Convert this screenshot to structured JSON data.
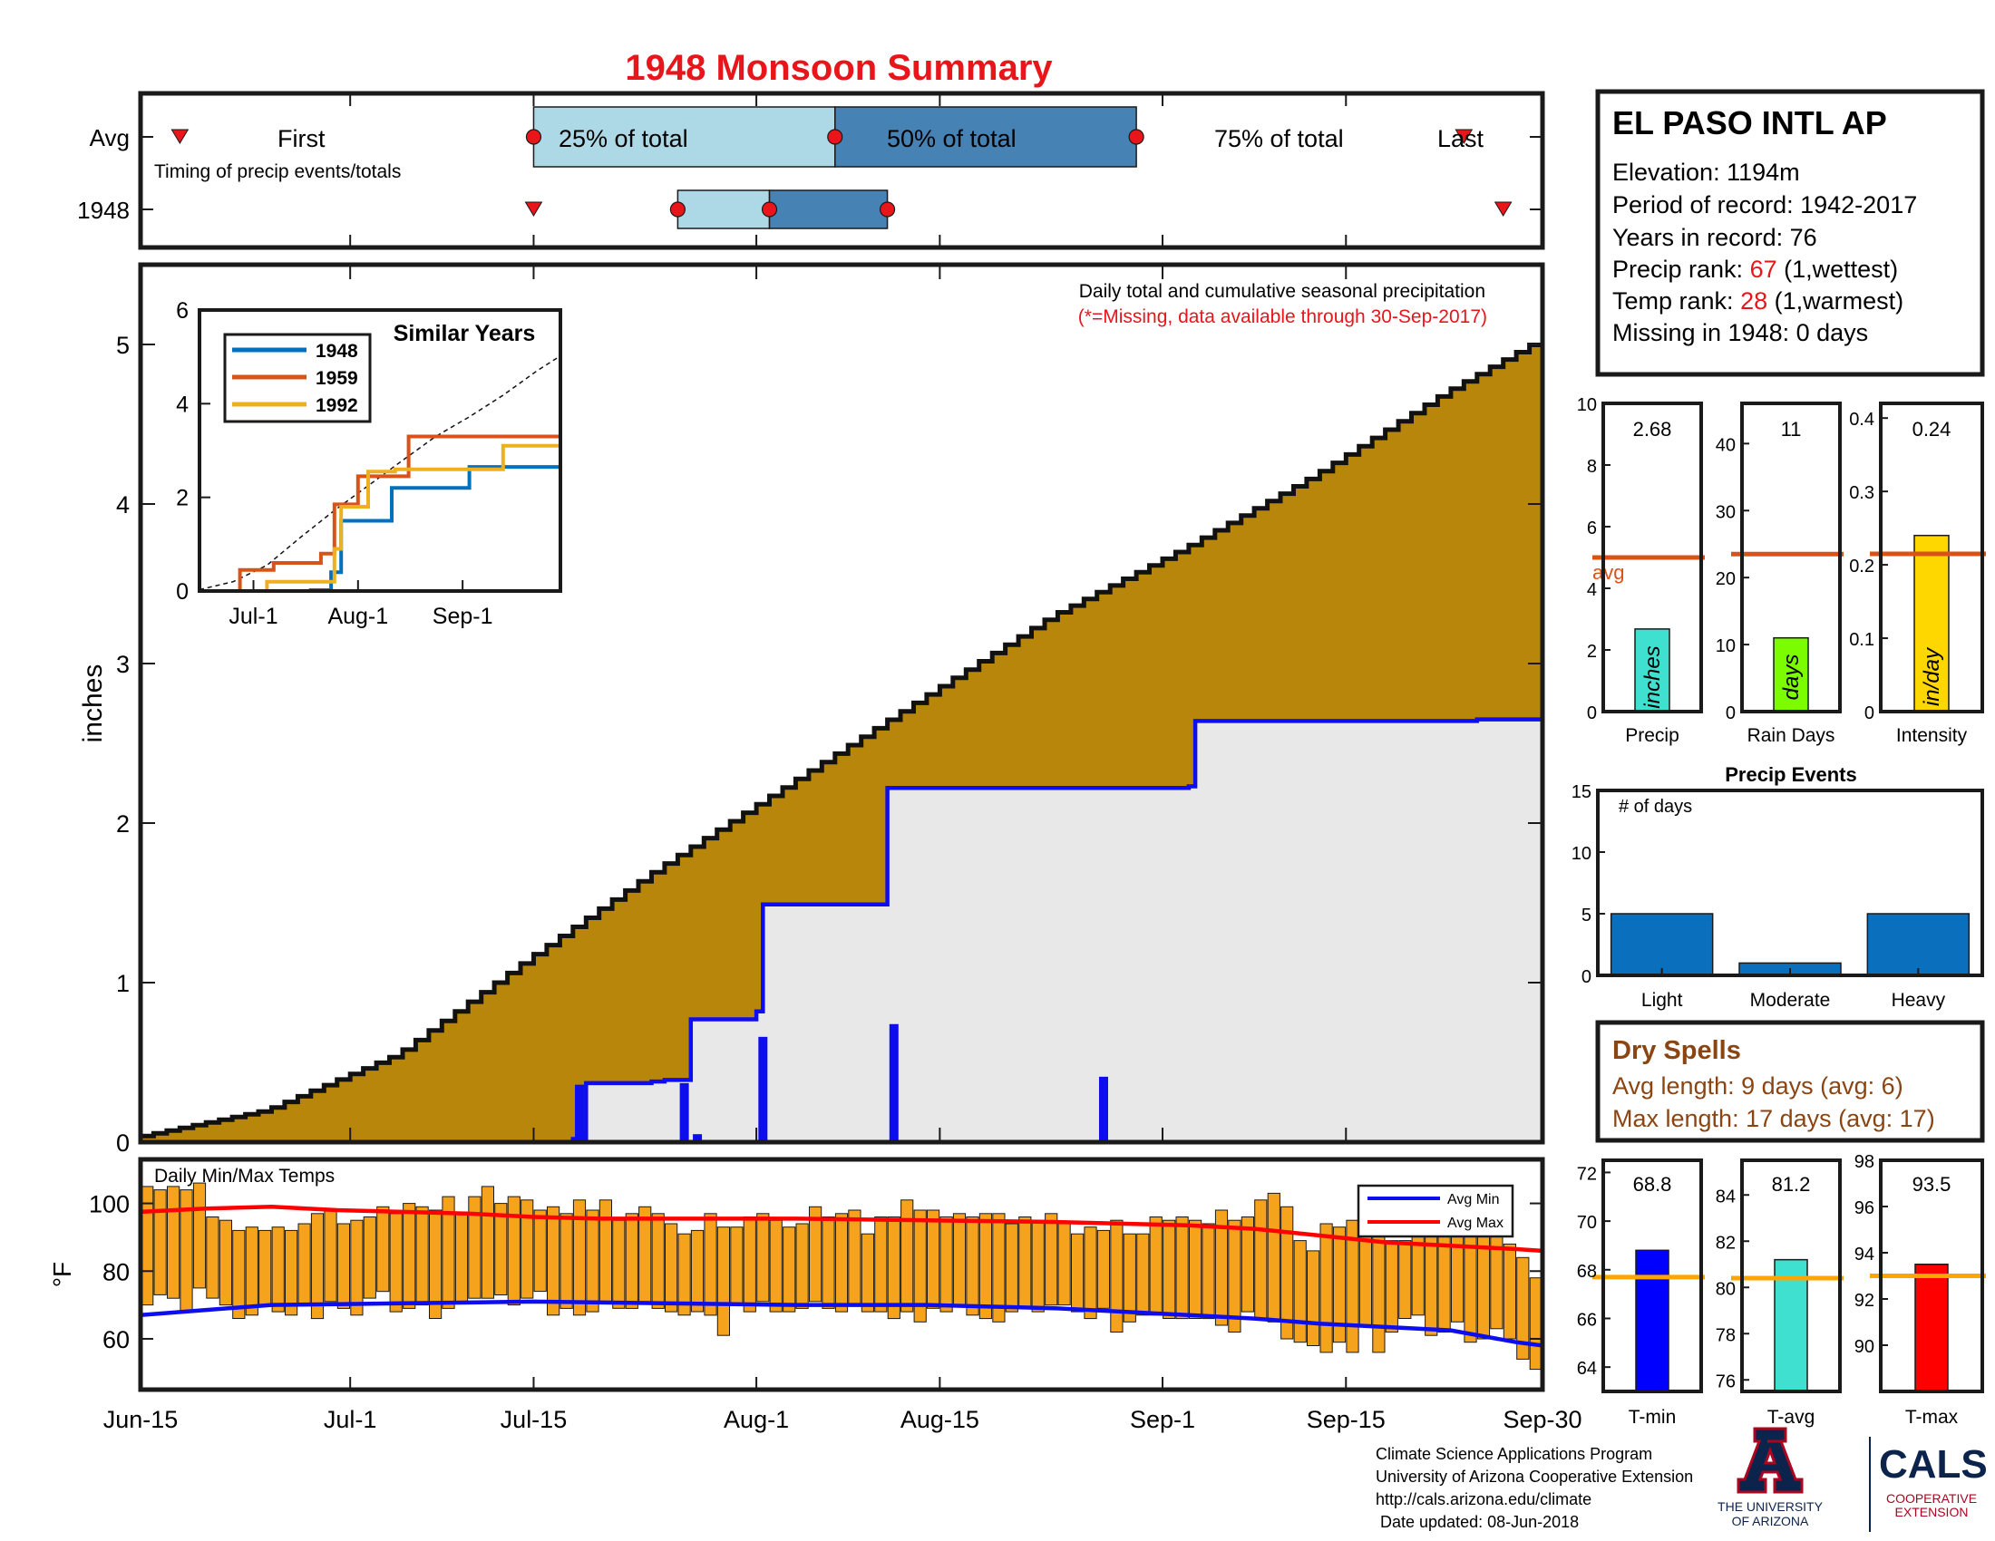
{
  "title": "1948 Monsoon Summary",
  "year": "1948",
  "timing": {
    "row_avg_label": "Avg",
    "row_year_label": "1948",
    "subtitle": "Timing of precip events/totals",
    "labels": {
      "first": "First",
      "p25": "25% of total",
      "p50": "50% of total",
      "p75": "75% of total",
      "last": "Last"
    }
  },
  "station": {
    "name": "EL PASO INTL AP",
    "elevation_text": "Elevation: 1194m",
    "period_text": "Period of record: 1942-2017",
    "years_text": "Years in record: 76",
    "precip_rank_prefix": "Precip rank: ",
    "precip_rank": "67",
    "precip_rank_suffix": " (1,wettest)",
    "temp_rank_prefix": "Temp rank: ",
    "temp_rank": "28",
    "temp_rank_suffix": " (1,warmest)",
    "missing_text": "Missing in 1948: 0 days"
  },
  "main_chart": {
    "note_line1": "Daily total and cumulative seasonal precipitation",
    "note_line2": "(*=Missing, data available through 30-Sep-2017)",
    "ylabel": "inches"
  },
  "temp_chart": {
    "title": "Daily Min/Max Temps",
    "ylabel": "°F",
    "legend_min": "Avg Min",
    "legend_max": "Avg Max"
  },
  "dry_spells": {
    "title": "Dry Spells",
    "avg_text": "Avg length: 9 days (avg: 6)",
    "max_text": "Max length: 17 days (avg: 17)"
  },
  "footer": {
    "line1": "Climate Science Applications Program",
    "line2": "University of Arizona Cooperative Extension",
    "line3": "http://cals.arizona.edu/climate",
    "line4": " Date updated: 08-Jun-2018"
  },
  "logos": {
    "ua_line1": "THE UNIVERSITY",
    "ua_line2": "OF ARIZONA",
    "cals": "CALS",
    "cals_sub1": "COOPERATIVE",
    "cals_sub2": "EXTENSION"
  },
  "colors": {
    "title_red": "#e8151b",
    "avg_fill": "#b8860b",
    "cum_fill": "#e8e8e8",
    "blue": "#0d0df0",
    "orange_line": "#d95319",
    "temp_bar": "#f5a21c",
    "box_light": "#add8e6",
    "box_dark": "#4682b4",
    "dry_brown": "#8b4513"
  },
  "chart_data": [
    {
      "type": "timing",
      "title": "Timing of precip events/totals",
      "x_range": [
        "Jun-15",
        "Sep-30"
      ],
      "avg": {
        "first": "Jun-18",
        "p25": "Jul-15",
        "p50": "Aug-7",
        "p75": "Aug-30",
        "last": "Sep-24"
      },
      "year_1948": {
        "first": "Jul-15",
        "p25": "Jul-26",
        "p50": "Aug-2",
        "p75": "Aug-11",
        "last": "Sep-27"
      }
    },
    {
      "type": "area",
      "title": "Daily total and cumulative seasonal precipitation",
      "ylabel": "inches",
      "xlim": [
        "Jun-15",
        "Sep-30"
      ],
      "ylim": [
        0,
        5.5
      ],
      "x_ticks": [
        "Jun-15",
        "Jul-1",
        "Jul-15",
        "Aug-1",
        "Aug-15",
        "Sep-1",
        "Sep-15",
        "Sep-30"
      ],
      "x_tick_days": [
        0,
        16,
        30,
        47,
        61,
        78,
        92,
        107
      ],
      "y_ticks": [
        0,
        1,
        2,
        3,
        4,
        5
      ],
      "avg_cumulative": {
        "days": [
          0,
          10,
          20,
          30,
          40,
          50,
          60,
          70,
          80,
          90,
          100,
          107
        ],
        "values": [
          0.03,
          0.2,
          0.55,
          1.15,
          1.72,
          2.25,
          2.78,
          3.3,
          3.72,
          4.18,
          4.7,
          5.02
        ]
      },
      "cumulative_1948": {
        "days": [
          0,
          28,
          33,
          34,
          39,
          40,
          42,
          47,
          47.5,
          56.5,
          57,
          80,
          80.5,
          102,
          107
        ],
        "values": [
          0,
          0,
          0.02,
          0.37,
          0.38,
          0.39,
          0.77,
          0.82,
          1.49,
          1.49,
          2.22,
          2.23,
          2.64,
          2.65,
          2.68
        ]
      },
      "daily_bars": [
        {
          "day": 33.5,
          "value": 0.36
        },
        {
          "day": 41.5,
          "value": 0.37
        },
        {
          "day": 42.5,
          "value": 0.05
        },
        {
          "day": 47.5,
          "value": 0.66
        },
        {
          "day": 57.5,
          "value": 0.74
        },
        {
          "day": 73.5,
          "value": 0.41
        }
      ]
    },
    {
      "type": "bar",
      "title": "Daily Min/Max Temps",
      "ylabel": "°F",
      "ylim": [
        45,
        113
      ],
      "y_ticks": [
        60,
        80,
        100
      ],
      "days": [
        0,
        1,
        2,
        3,
        4,
        5,
        6,
        7,
        8,
        9,
        10,
        11,
        12,
        13,
        14,
        15,
        16,
        17,
        18,
        19,
        20,
        21,
        22,
        23,
        24,
        25,
        26,
        27,
        28,
        29,
        30,
        31,
        32,
        33,
        34,
        35,
        36,
        37,
        38,
        39,
        40,
        41,
        42,
        43,
        44,
        45,
        46,
        47,
        48,
        49,
        50,
        51,
        52,
        53,
        54,
        55,
        56,
        57,
        58,
        59,
        60,
        61,
        62,
        63,
        64,
        65,
        66,
        67,
        68,
        69,
        70,
        71,
        72,
        73,
        74,
        75,
        76,
        77,
        78,
        79,
        80,
        81,
        82,
        83,
        84,
        85,
        86,
        87,
        88,
        89,
        90,
        91,
        92,
        93,
        94,
        95,
        96,
        97,
        98,
        99,
        100,
        101,
        102,
        103,
        104,
        105,
        106
      ],
      "tmin": [
        70,
        73,
        72,
        68,
        75,
        72,
        70,
        66,
        67,
        70,
        68,
        67,
        70,
        66,
        71,
        69,
        67,
        72,
        74,
        68,
        69,
        70,
        66,
        69,
        71,
        72,
        72,
        73,
        70,
        72,
        74,
        67,
        69,
        67,
        68,
        71,
        69,
        69,
        71,
        69,
        68,
        67,
        68,
        67,
        61,
        70,
        68,
        71,
        68,
        68,
        69,
        71,
        69,
        68,
        70,
        68,
        68,
        66,
        68,
        65,
        69,
        68,
        70,
        67,
        66,
        65,
        68,
        69,
        68,
        70,
        70,
        68,
        66,
        69,
        62,
        65,
        67,
        67,
        66,
        66,
        66,
        66,
        64,
        62,
        68,
        66,
        65,
        60,
        59,
        58,
        56,
        59,
        56,
        64,
        56,
        62,
        66,
        67,
        61,
        62,
        65,
        59,
        60,
        63,
        60,
        54,
        51
      ],
      "tmax": [
        105,
        104,
        105,
        104,
        106,
        96,
        95,
        92,
        93,
        92,
        93,
        92,
        94,
        97,
        98,
        94,
        95,
        96,
        99,
        97,
        100,
        99,
        98,
        102,
        97,
        102,
        105,
        100,
        102,
        101,
        98,
        99,
        97,
        101,
        98,
        101,
        95,
        97,
        99,
        97,
        94,
        91,
        92,
        97,
        93,
        93,
        96,
        97,
        95,
        93,
        94,
        99,
        96,
        97,
        98,
        91,
        96,
        96,
        101,
        98,
        98,
        96,
        97,
        96,
        97,
        97,
        94,
        96,
        95,
        97,
        94,
        91,
        93,
        92,
        95,
        91,
        91,
        96,
        95,
        96,
        95,
        94,
        98,
        95,
        96,
        101,
        103,
        99,
        89,
        86,
        94,
        93,
        95,
        95,
        91,
        89,
        89,
        92,
        95,
        94,
        93,
        92,
        91,
        93,
        88,
        84,
        78
      ],
      "avg_min": {
        "days": [
          0,
          10,
          20,
          30,
          40,
          50,
          60,
          70,
          80,
          85,
          90,
          95,
          100,
          105,
          107
        ],
        "values": [
          67,
          70,
          70.5,
          71,
          70.5,
          70,
          70,
          69,
          67,
          66,
          64.5,
          63.5,
          62.5,
          59,
          58
        ]
      },
      "avg_max": {
        "days": [
          0,
          5,
          10,
          15,
          20,
          25,
          30,
          35,
          40,
          50,
          60,
          70,
          80,
          85,
          90,
          95,
          100,
          105,
          107
        ],
        "values": [
          97.5,
          98.5,
          99,
          98,
          97.5,
          97,
          96,
          95.5,
          95.5,
          95.5,
          95,
          94.5,
          93.5,
          92.5,
          90.5,
          88.5,
          87.5,
          86.5,
          86
        ]
      }
    },
    {
      "type": "bar",
      "title": "Precip",
      "ylim": [
        0,
        10
      ],
      "y_ticks": [
        0,
        2,
        4,
        6,
        8,
        10
      ],
      "value": 2.68,
      "value_label": "2.68",
      "avg": 5.0,
      "avg_label": "avg",
      "unit": "inches",
      "color": "#40e0d0"
    },
    {
      "type": "bar",
      "title": "Rain Days",
      "ylim": [
        0,
        46
      ],
      "y_ticks": [
        0,
        10,
        20,
        30,
        40
      ],
      "value": 11,
      "value_label": "11",
      "avg": 23.5,
      "unit": "days",
      "color": "#7cfc00"
    },
    {
      "type": "bar",
      "title": "Intensity",
      "ylim": [
        0,
        0.42
      ],
      "y_ticks": [
        0,
        0.1,
        0.2,
        0.3,
        0.4
      ],
      "value": 0.24,
      "value_label": "0.24",
      "avg": 0.215,
      "unit": "in/day",
      "color": "#ffd700"
    },
    {
      "type": "bar",
      "title": "Precip Events",
      "ylabel": "# of days",
      "ylim": [
        0,
        15
      ],
      "y_ticks": [
        0,
        5,
        10,
        15
      ],
      "categories": [
        "Light",
        "Moderate",
        "Heavy"
      ],
      "values": [
        5,
        1,
        5
      ],
      "color": "#0a6fbd"
    },
    {
      "type": "bar",
      "title": "T-min",
      "ylim": [
        63,
        72.5
      ],
      "y_ticks": [
        64,
        66,
        68,
        70,
        72
      ],
      "value": 68.8,
      "value_label": "68.8",
      "avg": 67.7,
      "color": "#0000ff"
    },
    {
      "type": "bar",
      "title": "T-avg",
      "ylim": [
        75.5,
        85.5
      ],
      "y_ticks": [
        76,
        78,
        80,
        82,
        84
      ],
      "value": 81.2,
      "value_label": "81.2",
      "avg": 80.4,
      "color": "#40e0d0"
    },
    {
      "type": "bar",
      "title": "T-max",
      "ylim": [
        88,
        98
      ],
      "y_ticks": [
        90,
        92,
        94,
        96,
        98
      ],
      "value": 93.5,
      "value_label": "93.5",
      "avg": 93.0,
      "color": "#ff0000"
    }
  ]
}
